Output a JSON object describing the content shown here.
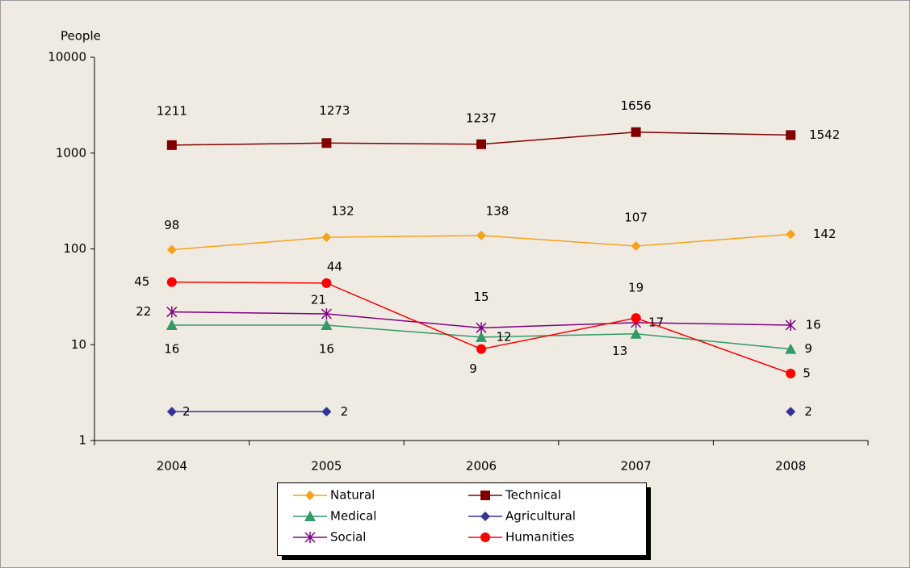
{
  "chart_data": {
    "type": "line",
    "y_label": "People",
    "categories": [
      "2004",
      "2005",
      "2006",
      "2007",
      "2008"
    ],
    "ylim": [
      1,
      10000
    ],
    "yticks": [
      1,
      10,
      100,
      1000,
      10000
    ],
    "log_scale": true,
    "legend": "bottom",
    "series": [
      {
        "name": "Natural",
        "color": "#f7a21b",
        "marker": "diamond",
        "values": [
          98,
          132,
          138,
          107,
          142
        ]
      },
      {
        "name": "Technical",
        "color": "#800000",
        "marker": "square",
        "values": [
          1211,
          1273,
          1237,
          1656,
          1542
        ]
      },
      {
        "name": "Medical",
        "color": "#339966",
        "marker": "triangle",
        "values": [
          16,
          16,
          12,
          13,
          9
        ]
      },
      {
        "name": "Agricultural",
        "color": "#333399",
        "marker": "diamond",
        "values": [
          2,
          2,
          null,
          null,
          2
        ]
      },
      {
        "name": "Social",
        "color": "#800080",
        "marker": "asterisk",
        "values": [
          22,
          21,
          15,
          17,
          16
        ]
      },
      {
        "name": "Humanities",
        "color": "#ff0000",
        "marker": "circle",
        "values": [
          45,
          44,
          9,
          19,
          5
        ]
      }
    ]
  }
}
